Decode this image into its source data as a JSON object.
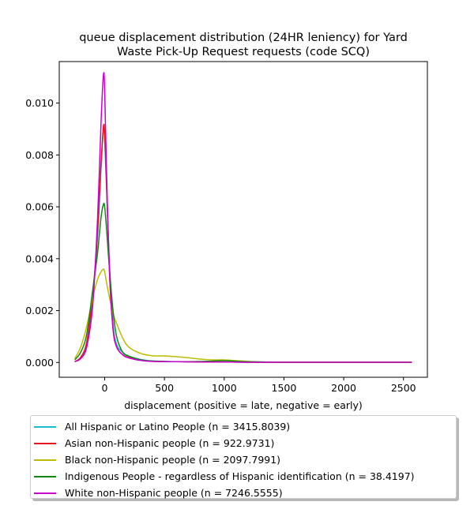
{
  "chart_data": {
    "type": "line",
    "title": "queue displacement distribution (24HR leniency) for Yard\nWaste Pick-Up Request  requests (code SCQ)",
    "xlabel": "displacement (positive = late, negative = early)",
    "ylabel": "",
    "xlim": [
      -380,
      2700
    ],
    "ylim": [
      -0.00057,
      0.0116
    ],
    "xticks": [
      0,
      500,
      1000,
      1500,
      2000,
      2500
    ],
    "yticks": [
      0.0,
      0.002,
      0.004,
      0.006,
      0.008,
      0.01
    ],
    "xtick_labels": [
      "0",
      "500",
      "1000",
      "1500",
      "2000",
      "2500"
    ],
    "ytick_labels": [
      "0.000",
      "0.002",
      "0.004",
      "0.006",
      "0.008",
      "0.010"
    ],
    "grid": false,
    "legend_position": "below",
    "series": [
      {
        "name": "All Hispanic or Latino People (n = 3415.8039)",
        "color": "#17becf",
        "x": [
          -250,
          -200,
          -150,
          -100,
          -60,
          -30,
          -10,
          0,
          15,
          40,
          70,
          100,
          150,
          200,
          300,
          400,
          600,
          800,
          1000,
          1200,
          1500,
          2000,
          2570
        ],
        "y": [
          3e-05,
          0.0002,
          0.0007,
          0.0025,
          0.0048,
          0.0075,
          0.009,
          0.0086,
          0.0068,
          0.0038,
          0.0015,
          0.0007,
          0.0004,
          0.00025,
          0.00012,
          6e-05,
          3e-05,
          2e-05,
          2e-05,
          1e-05,
          1e-05,
          1e-05,
          1e-05
        ]
      },
      {
        "name": "Asian non-Hispanic people (n = 922.9731)",
        "color": "#e8141b",
        "x": [
          -250,
          -200,
          -150,
          -100,
          -60,
          -30,
          -10,
          0,
          15,
          40,
          70,
          100,
          150,
          200,
          300,
          400,
          600,
          800,
          1000,
          1200,
          1500,
          2000,
          2570
        ],
        "y": [
          3e-05,
          0.0002,
          0.0008,
          0.0026,
          0.005,
          0.0077,
          0.0091,
          0.0088,
          0.007,
          0.0035,
          0.0013,
          0.0006,
          0.0003,
          0.0002,
          0.0001,
          5e-05,
          3e-05,
          2e-05,
          2e-05,
          1e-05,
          1e-05,
          1e-05,
          1e-05
        ]
      },
      {
        "name": "Black non-Hispanic people (n = 2097.7991)",
        "color": "#bcbd00",
        "x": [
          -250,
          -200,
          -150,
          -100,
          -60,
          -30,
          -10,
          0,
          15,
          40,
          70,
          100,
          150,
          200,
          300,
          400,
          500,
          600,
          700,
          800,
          900,
          1000,
          1100,
          1200,
          1300,
          1400,
          1600,
          2000,
          2570
        ],
        "y": [
          0.00015,
          0.0006,
          0.0014,
          0.0025,
          0.0032,
          0.0035,
          0.0036,
          0.0035,
          0.0031,
          0.0025,
          0.0019,
          0.0015,
          0.00095,
          0.0006,
          0.00035,
          0.00026,
          0.00025,
          0.00022,
          0.00018,
          0.00013,
          0.0001,
          0.0001,
          7e-05,
          4e-05,
          2e-05,
          1e-05,
          1e-05,
          1e-05,
          1e-05
        ]
      },
      {
        "name": "Indigenous People - regardless of Hispanic identification (n = 38.4197)",
        "color": "#118811",
        "x": [
          -250,
          -200,
          -150,
          -100,
          -60,
          -30,
          -10,
          0,
          15,
          40,
          70,
          100,
          150,
          200,
          300,
          400,
          600,
          800,
          1000,
          1100,
          1200,
          1500,
          2000,
          2570
        ],
        "y": [
          0.0001,
          0.0004,
          0.0011,
          0.0028,
          0.0042,
          0.0056,
          0.0061,
          0.006,
          0.0052,
          0.0036,
          0.002,
          0.001,
          0.0004,
          0.00025,
          0.0001,
          5e-05,
          3e-05,
          4e-05,
          7e-05,
          5e-05,
          3e-05,
          1e-05,
          1e-05,
          1e-05
        ]
      },
      {
        "name": "White non-Hispanic people (n = 7246.5555)",
        "color": "#cc00cc",
        "x": [
          -250,
          -200,
          -150,
          -100,
          -60,
          -30,
          -10,
          0,
          15,
          40,
          70,
          100,
          150,
          200,
          300,
          400,
          600,
          800,
          1000,
          1200,
          1500,
          2000,
          2570
        ],
        "y": [
          3e-05,
          0.00015,
          0.0006,
          0.0022,
          0.0055,
          0.0093,
          0.0111,
          0.0105,
          0.0075,
          0.0035,
          0.0013,
          0.0006,
          0.0003,
          0.00018,
          8e-05,
          4e-05,
          3e-05,
          2e-05,
          2e-05,
          1e-05,
          1e-05,
          1e-05,
          1e-05
        ]
      }
    ]
  }
}
